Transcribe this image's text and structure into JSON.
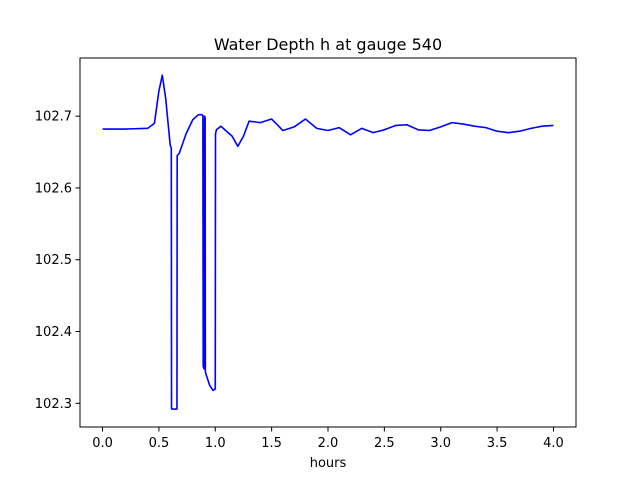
{
  "chart_data": {
    "type": "line",
    "title": "Water Depth h at gauge 540",
    "xlabel": "hours",
    "ylabel": "",
    "xlim": [
      -0.2,
      4.2
    ],
    "ylim": [
      102.267,
      102.781
    ],
    "xticks": [
      0.0,
      0.5,
      1.0,
      1.5,
      2.0,
      2.5,
      3.0,
      3.5,
      4.0
    ],
    "xtick_labels": [
      "0.0",
      "0.5",
      "1.0",
      "1.5",
      "2.0",
      "2.5",
      "3.0",
      "3.5",
      "4.0"
    ],
    "yticks": [
      102.3,
      102.4,
      102.5,
      102.6,
      102.7
    ],
    "ytick_labels": [
      "102.3",
      "102.4",
      "102.5",
      "102.6",
      "102.7"
    ],
    "grid": false,
    "series": [
      {
        "color": "#0000ff",
        "x": [
          0.0,
          0.2,
          0.4,
          0.46,
          0.5,
          0.53,
          0.56,
          0.6,
          0.61,
          0.612,
          0.615,
          0.66,
          0.662,
          0.68,
          0.74,
          0.8,
          0.85,
          0.88,
          0.89,
          0.893,
          0.9,
          0.905,
          0.91,
          0.912,
          0.915,
          0.95,
          0.98,
          1.0,
          1.002,
          1.01,
          1.05,
          1.1,
          1.15,
          1.2,
          1.25,
          1.3,
          1.35,
          1.4,
          1.5,
          1.6,
          1.7,
          1.8,
          1.9,
          2.0,
          2.1,
          2.2,
          2.3,
          2.4,
          2.5,
          2.6,
          2.7,
          2.8,
          2.9,
          3.0,
          3.1,
          3.2,
          3.3,
          3.4,
          3.5,
          3.6,
          3.7,
          3.8,
          3.9,
          4.0
        ],
        "y": [
          102.682,
          102.682,
          102.683,
          102.69,
          102.735,
          102.757,
          102.725,
          102.66,
          102.655,
          102.293,
          102.292,
          102.292,
          102.645,
          102.648,
          102.675,
          102.695,
          102.702,
          102.702,
          102.701,
          102.352,
          102.348,
          102.7,
          102.698,
          102.345,
          102.342,
          102.325,
          102.318,
          102.32,
          102.675,
          102.681,
          102.686,
          102.679,
          102.672,
          102.658,
          102.672,
          102.693,
          102.692,
          102.691,
          102.696,
          102.68,
          102.685,
          102.696,
          102.683,
          102.68,
          102.684,
          102.674,
          102.683,
          102.677,
          102.681,
          102.687,
          102.688,
          102.681,
          102.68,
          102.685,
          102.691,
          102.689,
          102.686,
          102.684,
          102.679,
          102.677,
          102.679,
          102.683,
          102.686,
          102.687
        ]
      }
    ]
  }
}
